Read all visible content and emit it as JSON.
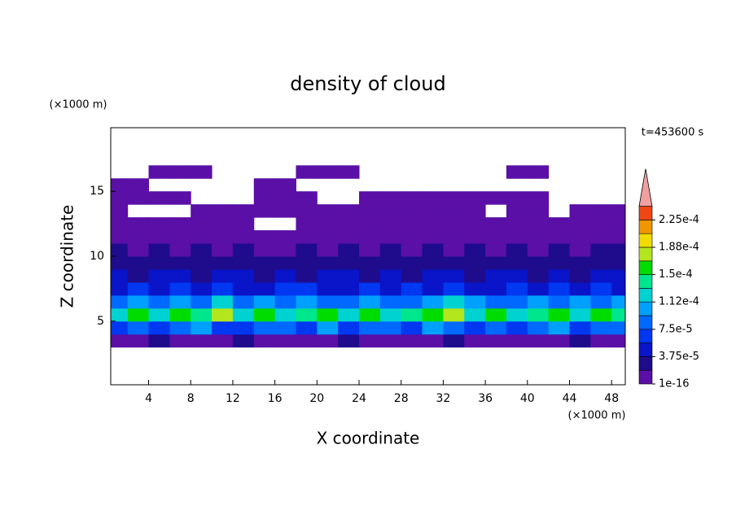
{
  "chart_data": {
    "type": "contour",
    "title": "density of cloud",
    "subtitle": "t=453600 s",
    "xlabel": "X coordinate",
    "ylabel": "Z coordinate",
    "xunit": "(×1000 m)",
    "yunit": "(×1000 m)",
    "xlim": [
      0.4,
      49.3
    ],
    "ylim": [
      0.1,
      19.9
    ],
    "xticks": [
      4,
      8,
      12,
      16,
      20,
      24,
      28,
      32,
      36,
      40,
      44,
      48
    ],
    "yticks": [
      5,
      10,
      15
    ],
    "x": [
      1,
      3,
      5,
      7,
      9,
      11,
      13,
      15,
      17,
      19,
      21,
      23,
      25,
      27,
      29,
      31,
      33,
      35,
      37,
      39,
      41,
      43,
      45,
      47,
      49
    ],
    "z": [
      3.5,
      4.5,
      5.5,
      6.5,
      7.5,
      8.5,
      9.5,
      10.5,
      11.5,
      12.5,
      13.5,
      14.5,
      15.5,
      16.5
    ],
    "values": [
      [
        1e-05,
        1e-05,
        2e-05,
        1e-05,
        1e-05,
        1e-05,
        2e-05,
        1e-05,
        1e-05,
        1e-05,
        1e-05,
        2e-05,
        1e-05,
        1e-05,
        1e-05,
        1e-05,
        2e-05,
        1e-05,
        1e-05,
        1e-05,
        1e-05,
        1e-05,
        2e-05,
        1e-05,
        1e-05
      ],
      [
        7e-05,
        9e-05,
        6e-05,
        8e-05,
        0.0001,
        7e-05,
        6e-05,
        9e-05,
        8e-05,
        7e-05,
        0.0001,
        6e-05,
        8e-05,
        9e-05,
        7e-05,
        0.0001,
        8e-05,
        6e-05,
        9e-05,
        7e-05,
        8e-05,
        0.0001,
        7e-05,
        9e-05,
        8e-05
      ],
      [
        0.00013,
        0.00015,
        0.00012,
        0.00016,
        0.00014,
        0.00017,
        0.00013,
        0.00015,
        0.00012,
        0.00014,
        0.00016,
        0.00013,
        0.00015,
        0.00012,
        0.00014,
        0.00016,
        0.00017,
        0.00013,
        0.00015,
        0.00012,
        0.00014,
        0.00016,
        0.00013,
        0.00015,
        0.00014
      ],
      [
        9e-05,
        0.00011,
        8e-05,
        0.0001,
        9e-05,
        0.00012,
        8e-05,
        0.0001,
        9e-05,
        0.00011,
        8e-05,
        9e-05,
        0.0001,
        8e-05,
        9e-05,
        0.00011,
        0.00012,
        0.0001,
        9e-05,
        8e-05,
        0.0001,
        9e-05,
        0.00011,
        8e-05,
        0.0001
      ],
      [
        5e-05,
        6e-05,
        4e-05,
        7e-05,
        5e-05,
        6e-05,
        4e-05,
        5e-05,
        7e-05,
        6e-05,
        5e-05,
        4e-05,
        6e-05,
        5e-05,
        7e-05,
        4e-05,
        6e-05,
        5e-05,
        4e-05,
        6e-05,
        5e-05,
        7e-05,
        4e-05,
        6e-05,
        5e-05
      ],
      [
        4e-05,
        3e-05,
        5e-05,
        4e-05,
        3e-05,
        4e-05,
        5e-05,
        3e-05,
        4e-05,
        3e-05,
        4e-05,
        5e-05,
        3e-05,
        4e-05,
        3e-05,
        5e-05,
        4e-05,
        3e-05,
        4e-05,
        5e-05,
        3e-05,
        4e-05,
        3e-05,
        4e-05,
        5e-05
      ],
      [
        3e-05,
        2e-05,
        3e-05,
        2e-05,
        3e-05,
        2e-05,
        2e-05,
        3e-05,
        2e-05,
        3e-05,
        2e-05,
        3e-05,
        2e-05,
        2e-05,
        3e-05,
        2e-05,
        3e-05,
        2e-05,
        3e-05,
        2e-05,
        3e-05,
        2e-05,
        3e-05,
        2e-05,
        3e-05
      ],
      [
        2e-05,
        1e-05,
        2e-05,
        1e-05,
        2e-05,
        1e-05,
        2e-05,
        1e-05,
        1e-05,
        2e-05,
        1e-05,
        2e-05,
        1e-05,
        2e-05,
        1e-05,
        2e-05,
        1e-05,
        2e-05,
        1e-05,
        2e-05,
        1e-05,
        2e-05,
        1e-05,
        2e-05,
        2e-05
      ],
      [
        1e-05,
        1e-05,
        1e-05,
        1e-05,
        1e-05,
        1e-05,
        1e-05,
        1e-05,
        1e-05,
        1e-05,
        1e-05,
        1e-05,
        1e-05,
        1e-05,
        1e-05,
        1e-05,
        1e-05,
        1e-05,
        1e-05,
        1e-05,
        1e-05,
        1e-05,
        1e-05,
        1e-05,
        1e-05
      ],
      [
        1e-05,
        1e-05,
        1e-05,
        1e-05,
        1e-05,
        1e-05,
        1e-05,
        null,
        null,
        1e-05,
        1e-05,
        1e-05,
        1e-05,
        1e-05,
        1e-05,
        1e-05,
        1e-05,
        1e-05,
        1e-05,
        1e-05,
        1e-05,
        1e-05,
        1e-05,
        1e-05,
        1e-05
      ],
      [
        1e-05,
        null,
        null,
        null,
        1e-05,
        1e-05,
        1e-05,
        1e-05,
        1e-05,
        1e-05,
        1e-05,
        1e-05,
        1e-05,
        1e-05,
        1e-05,
        1e-05,
        1e-05,
        1e-05,
        null,
        1e-05,
        1e-05,
        null,
        1e-05,
        1e-05,
        1e-05
      ],
      [
        1e-05,
        1e-05,
        1e-05,
        1e-05,
        null,
        null,
        null,
        1e-05,
        1e-05,
        1e-05,
        null,
        null,
        1e-05,
        1e-05,
        1e-05,
        1e-05,
        1e-05,
        1e-05,
        1e-05,
        1e-05,
        1e-05,
        null,
        null,
        null,
        null
      ],
      [
        1e-05,
        1e-05,
        null,
        null,
        null,
        null,
        null,
        1e-05,
        1e-05,
        null,
        null,
        null,
        null,
        null,
        null,
        null,
        null,
        null,
        null,
        null,
        null,
        null,
        null,
        null,
        null
      ],
      [
        null,
        null,
        1e-05,
        1e-05,
        1e-05,
        null,
        null,
        null,
        null,
        1e-05,
        1e-05,
        1e-05,
        null,
        null,
        null,
        null,
        null,
        null,
        null,
        1e-05,
        1e-05,
        null,
        null,
        null,
        null
      ]
    ],
    "colorbar": {
      "levels": [
        1e-16,
        1.875e-05,
        3.75e-05,
        5.625e-05,
        7.5e-05,
        9.375e-05,
        0.0001125,
        0.00013125,
        0.00015,
        0.00016875,
        0.0001875,
        0.00020625,
        0.000225,
        0.00024375
      ],
      "colors": [
        "#5a0fa6",
        "#1e0c8c",
        "#0a14c8",
        "#0037f0",
        "#0069ff",
        "#00a0ff",
        "#00d2d2",
        "#00e68c",
        "#00dc00",
        "#b4e61e",
        "#f0dc00",
        "#f09600",
        "#f04614"
      ],
      "extend_color": "#f0a0a0",
      "ticks": [
        {
          "value": 1e-16,
          "label": "1e-16"
        },
        {
          "value": 3.75e-05,
          "label": "3.75e-5"
        },
        {
          "value": 7.5e-05,
          "label": "7.5e-5"
        },
        {
          "value": 0.0001125,
          "label": "1.12e-4"
        },
        {
          "value": 0.00015,
          "label": "1.5e-4"
        },
        {
          "value": 0.0001875,
          "label": "1.88e-4"
        },
        {
          "value": 0.000225,
          "label": "2.25e-4"
        }
      ]
    }
  }
}
